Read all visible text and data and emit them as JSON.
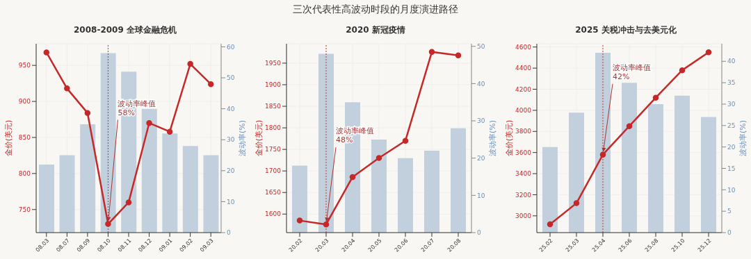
{
  "chart_data": [
    {
      "type": "bar",
      "title": "2008-2009 全球金融危机",
      "annotations": [
        "三次代表性高波动时段的月度演进路径"
      ],
      "categories": [
        "08.03",
        "08.07",
        "08.09",
        "08.10",
        "08.11",
        "08.12",
        "09.01",
        "09.02",
        "09.03"
      ],
      "series": [
        {
          "axis": "y2",
          "color": "#c2d0de",
          "values": [
            22,
            25,
            35,
            58,
            52,
            40,
            32,
            28,
            25
          ]
        },
        {
          "type": "line",
          "color": "#c62828",
          "values": [
            968,
            918,
            884,
            730,
            760,
            870,
            858,
            952,
            924
          ]
        }
      ],
      "ylabel": "金价(美元)",
      "y2label": "波动率(%)",
      "ylim": [
        718,
        980
      ],
      "yticks": [
        750,
        800,
        850,
        900,
        950
      ],
      "y2lim": [
        0,
        61
      ],
      "y2ticks": [
        0,
        10,
        20,
        30,
        40,
        50,
        60
      ],
      "ref_lines": [
        {
          "axis": "x",
          "value": "08.10",
          "label": "波动率峰值\n58%",
          "color": "#c0392b",
          "line_style": "dotted"
        }
      ],
      "grid": true,
      "marker": "circle",
      "line_style": "solid"
    },
    {
      "type": "bar",
      "title": "2020 新冠疫情",
      "categories": [
        "20.02",
        "20.03",
        "20.04",
        "20.05",
        "20.06",
        "20.07",
        "20.08"
      ],
      "series": [
        {
          "axis": "y2",
          "color": "#c2d0de",
          "values": [
            18,
            48,
            35,
            25,
            20,
            22,
            28
          ]
        },
        {
          "type": "line",
          "color": "#c62828",
          "values": [
            1585,
            1576,
            1686,
            1730,
            1770,
            1976,
            1968
          ]
        }
      ],
      "ylabel": "金价(美元)",
      "y2label": "波动率(%)",
      "ylim": [
        1557,
        1995
      ],
      "yticks": [
        1600,
        1650,
        1700,
        1750,
        1800,
        1850,
        1900,
        1950
      ],
      "y2lim": [
        0,
        50.7
      ],
      "y2ticks": [
        0,
        10,
        20,
        30,
        40,
        50
      ],
      "ref_lines": [
        {
          "axis": "x",
          "value": "20.03",
          "label": "波动率峰值\n48%",
          "color": "#c0392b",
          "line_style": "dotted"
        }
      ],
      "grid": true,
      "marker": "circle",
      "line_style": "solid"
    },
    {
      "type": "bar",
      "title": "2025 关税冲击与去美元化",
      "categories": [
        "25.02",
        "25.03",
        "25.04",
        "25.06",
        "25.08",
        "25.10",
        "25.12"
      ],
      "series": [
        {
          "axis": "y2",
          "color": "#c2d0de",
          "values": [
            20,
            28,
            42,
            35,
            30,
            32,
            27
          ]
        },
        {
          "type": "line",
          "color": "#c62828",
          "values": [
            2920,
            3120,
            3580,
            3850,
            4120,
            4380,
            4550
          ]
        }
      ],
      "ylabel": "金价(美元)",
      "y2label": "波动率(%)",
      "ylim": [
        2841,
        4631
      ],
      "yticks": [
        3000,
        3200,
        3400,
        3600,
        3800,
        4000,
        4200,
        4400,
        4600
      ],
      "y2lim": [
        0,
        44.1
      ],
      "y2ticks": [
        0,
        5,
        10,
        15,
        20,
        25,
        30,
        35,
        40
      ],
      "ref_lines": [
        {
          "axis": "x",
          "value": "25.04",
          "label": "波动率峰值\n42%",
          "color": "#c0392b",
          "line_style": "dotted"
        }
      ],
      "grid": true,
      "marker": "circle",
      "line_style": "solid"
    }
  ]
}
